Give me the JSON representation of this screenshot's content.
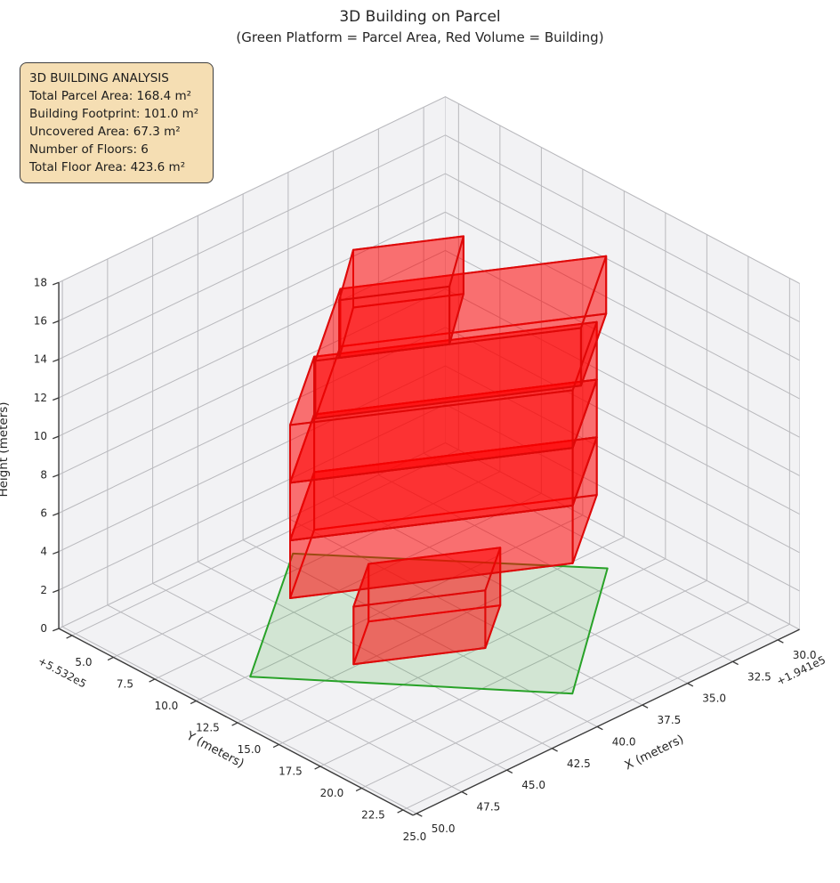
{
  "title": {
    "line1": "3D Building on Parcel",
    "line2": "(Green Platform = Parcel Area, Red Volume = Building)"
  },
  "info_box": {
    "title": "3D BUILDING ANALYSIS",
    "lines": [
      "Total Parcel Area: 168.4 m²",
      "Building Footprint: 101.0 m²",
      "Uncovered Area: 67.3 m²",
      "Number of Floors: 6",
      "Total Floor Area: 423.6 m²"
    ]
  },
  "chart_data": {
    "type": "3d-building-plot",
    "view": {
      "elev_deg": 30,
      "azim_deg": -48,
      "projection": "orthographic-approx"
    },
    "axes": {
      "x": {
        "label": "X (meters)",
        "offset_text": "+1.941e5",
        "lim": [
          28.8,
          50.2
        ],
        "ticks": [
          30,
          32.5,
          35,
          37.5,
          40,
          42.5,
          45,
          47.5,
          50
        ],
        "tick_decimals": 1
      },
      "y": {
        "label": "Y (meters)",
        "offset_text": "+5.532e5",
        "lim": [
          4.2,
          25.6
        ],
        "ticks": [
          5,
          7.5,
          10,
          12.5,
          15,
          17.5,
          20,
          22.5,
          25
        ],
        "tick_decimals": 1
      },
      "z": {
        "label": "Height (meters)",
        "lim": [
          0,
          18
        ],
        "ticks": [
          0,
          2,
          4,
          6,
          8,
          10,
          12,
          14,
          16,
          18
        ],
        "tick_decimals": 0
      }
    },
    "parcel": {
      "area_m2": 168.4,
      "z": 0,
      "polygon_xy": [
        [
          47.3,
          12.6
        ],
        [
          39.3,
          6.45
        ],
        [
          31.0,
          16.4
        ],
        [
          38.9,
          22.9
        ]
      ]
    },
    "building": {
      "footprint_m2": 101.0,
      "uncovered_m2": 67.3,
      "num_floors": 6,
      "total_floor_area_m2": 423.6,
      "floor_height_m": 3,
      "floors": [
        {
          "name": "floor-1",
          "z0": 0,
          "z1": 3,
          "footprint_xy": [
            [
              38.92,
              17.66
            ],
            [
              43.63,
              14.84
            ],
            [
              40.85,
              12.71
            ],
            [
              36.14,
              15.53
            ]
          ]
        },
        {
          "name": "floor-2",
          "z0": 3,
          "z1": 6,
          "footprint_xy": [
            [
              34.9,
              18.55
            ],
            [
              45.0,
              12.5
            ],
            [
              40.55,
              9.1
            ],
            [
              30.45,
              15.15
            ]
          ]
        },
        {
          "name": "floor-3",
          "z0": 6,
          "z1": 9,
          "footprint_xy": [
            [
              34.9,
              18.55
            ],
            [
              45.0,
              12.5
            ],
            [
              40.55,
              9.1
            ],
            [
              30.45,
              15.15
            ]
          ]
        },
        {
          "name": "floor-4",
          "z0": 9,
          "z1": 12,
          "footprint_xy": [
            [
              34.9,
              18.55
            ],
            [
              45.0,
              12.5
            ],
            [
              40.55,
              9.1
            ],
            [
              30.45,
              15.15
            ]
          ]
        },
        {
          "name": "floor-5",
          "z0": 12,
          "z1": 15,
          "footprint_xy": [
            [
              34.41,
              18.52
            ],
            [
              43.91,
              12.83
            ],
            [
              39.23,
              9.24
            ],
            [
              29.73,
              14.93
            ]
          ]
        },
        {
          "name": "floor-6",
          "z0": 15,
          "z1": 18,
          "footprint_xy": [
            [
              39.11,
              15.7
            ],
            [
              43.05,
              13.34
            ],
            [
              39.88,
              10.73
            ],
            [
              35.94,
              13.09
            ]
          ]
        }
      ]
    },
    "colors": {
      "building_fill": "#ff0000",
      "building_fill_alpha": 0.32,
      "building_edge": "#dd0909",
      "parcel_fill": "#2ca02c",
      "parcel_fill_alpha": 0.16,
      "parcel_edge": "#28a228",
      "pane": "#f2f2f4",
      "pane_edge": "#d8d8dc",
      "grid": "#b9b9bd",
      "axis": "#3a3a3a",
      "text": "#262626",
      "infobox_bg": "#f5deb3",
      "infobox_border": "#3f3f3f"
    }
  }
}
